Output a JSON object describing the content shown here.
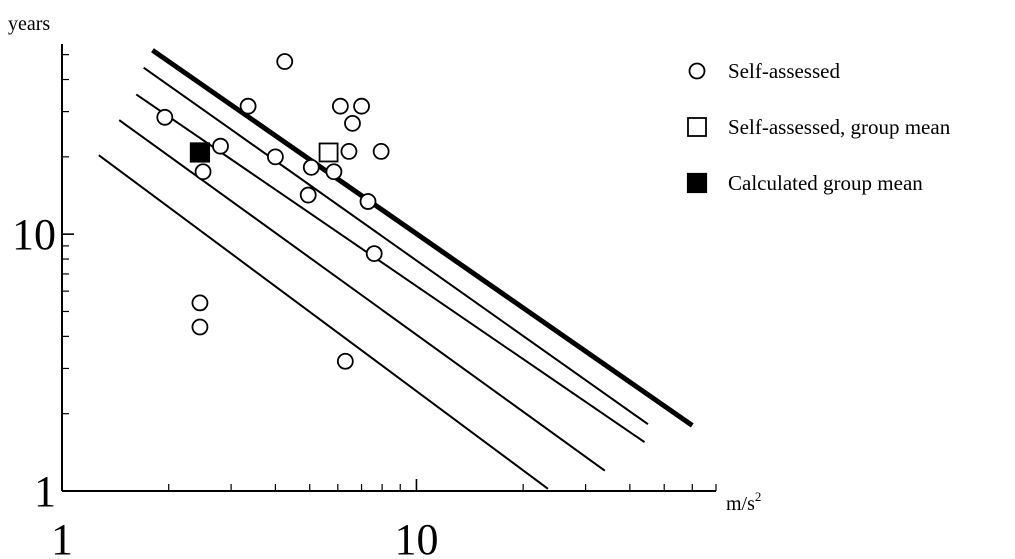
{
  "chart_data": {
    "type": "scatter",
    "title": "",
    "xlabel": "m/s",
    "xlabel_superscript": "2",
    "ylabel": "years",
    "x_scale": "log",
    "y_scale": "log",
    "xlim": [
      1,
      70
    ],
    "ylim": [
      1,
      55
    ],
    "x_ticks": [
      {
        "value": 1,
        "label": "1"
      },
      {
        "value": 10,
        "label": "10"
      }
    ],
    "y_ticks": [
      {
        "value": 1,
        "label": "1"
      },
      {
        "value": 10,
        "label": "10"
      }
    ],
    "grid": false,
    "legend_position": "top-right",
    "legend": [
      {
        "marker": "circle-open",
        "label": "Self-assessed"
      },
      {
        "marker": "square-open",
        "label": "Self-assessed, group mean"
      },
      {
        "marker": "square-filled",
        "label": "Calculated group mean"
      }
    ],
    "series": [
      {
        "name": "Self-assessed",
        "marker": "circle-open",
        "points": [
          {
            "x": 1.95,
            "y": 28.5
          },
          {
            "x": 2.45,
            "y": 5.4
          },
          {
            "x": 2.45,
            "y": 4.35
          },
          {
            "x": 2.5,
            "y": 17.5
          },
          {
            "x": 2.8,
            "y": 22
          },
          {
            "x": 3.35,
            "y": 31.5
          },
          {
            "x": 4.0,
            "y": 20
          },
          {
            "x": 4.25,
            "y": 47
          },
          {
            "x": 4.95,
            "y": 14.2
          },
          {
            "x": 5.05,
            "y": 18.2
          },
          {
            "x": 5.85,
            "y": 17.5
          },
          {
            "x": 6.1,
            "y": 31.5
          },
          {
            "x": 6.3,
            "y": 3.2
          },
          {
            "x": 6.45,
            "y": 21
          },
          {
            "x": 6.6,
            "y": 27
          },
          {
            "x": 7.0,
            "y": 31.5
          },
          {
            "x": 7.3,
            "y": 13.4
          },
          {
            "x": 7.6,
            "y": 8.4
          },
          {
            "x": 7.95,
            "y": 21
          }
        ]
      },
      {
        "name": "Self-assessed, group mean",
        "marker": "square-open",
        "points": [
          {
            "x": 5.65,
            "y": 20.8
          }
        ]
      },
      {
        "name": "Calculated group mean",
        "marker": "square-filled",
        "points": [
          {
            "x": 2.45,
            "y": 20.8
          }
        ]
      }
    ],
    "reference_lines": [
      {
        "style": "thin",
        "from": [
          1.27,
          20.3
        ],
        "to": [
          23.5,
          1.02
        ]
      },
      {
        "style": "thin",
        "from": [
          1.45,
          27.8
        ],
        "to": [
          34,
          1.2
        ]
      },
      {
        "style": "thin",
        "from": [
          1.62,
          35
        ],
        "to": [
          44,
          1.55
        ]
      },
      {
        "style": "thin",
        "from": [
          1.7,
          44.5
        ],
        "to": [
          45,
          1.82
        ]
      },
      {
        "style": "bold",
        "from": [
          1.8,
          52
        ],
        "to": [
          60,
          1.8
        ]
      }
    ]
  }
}
